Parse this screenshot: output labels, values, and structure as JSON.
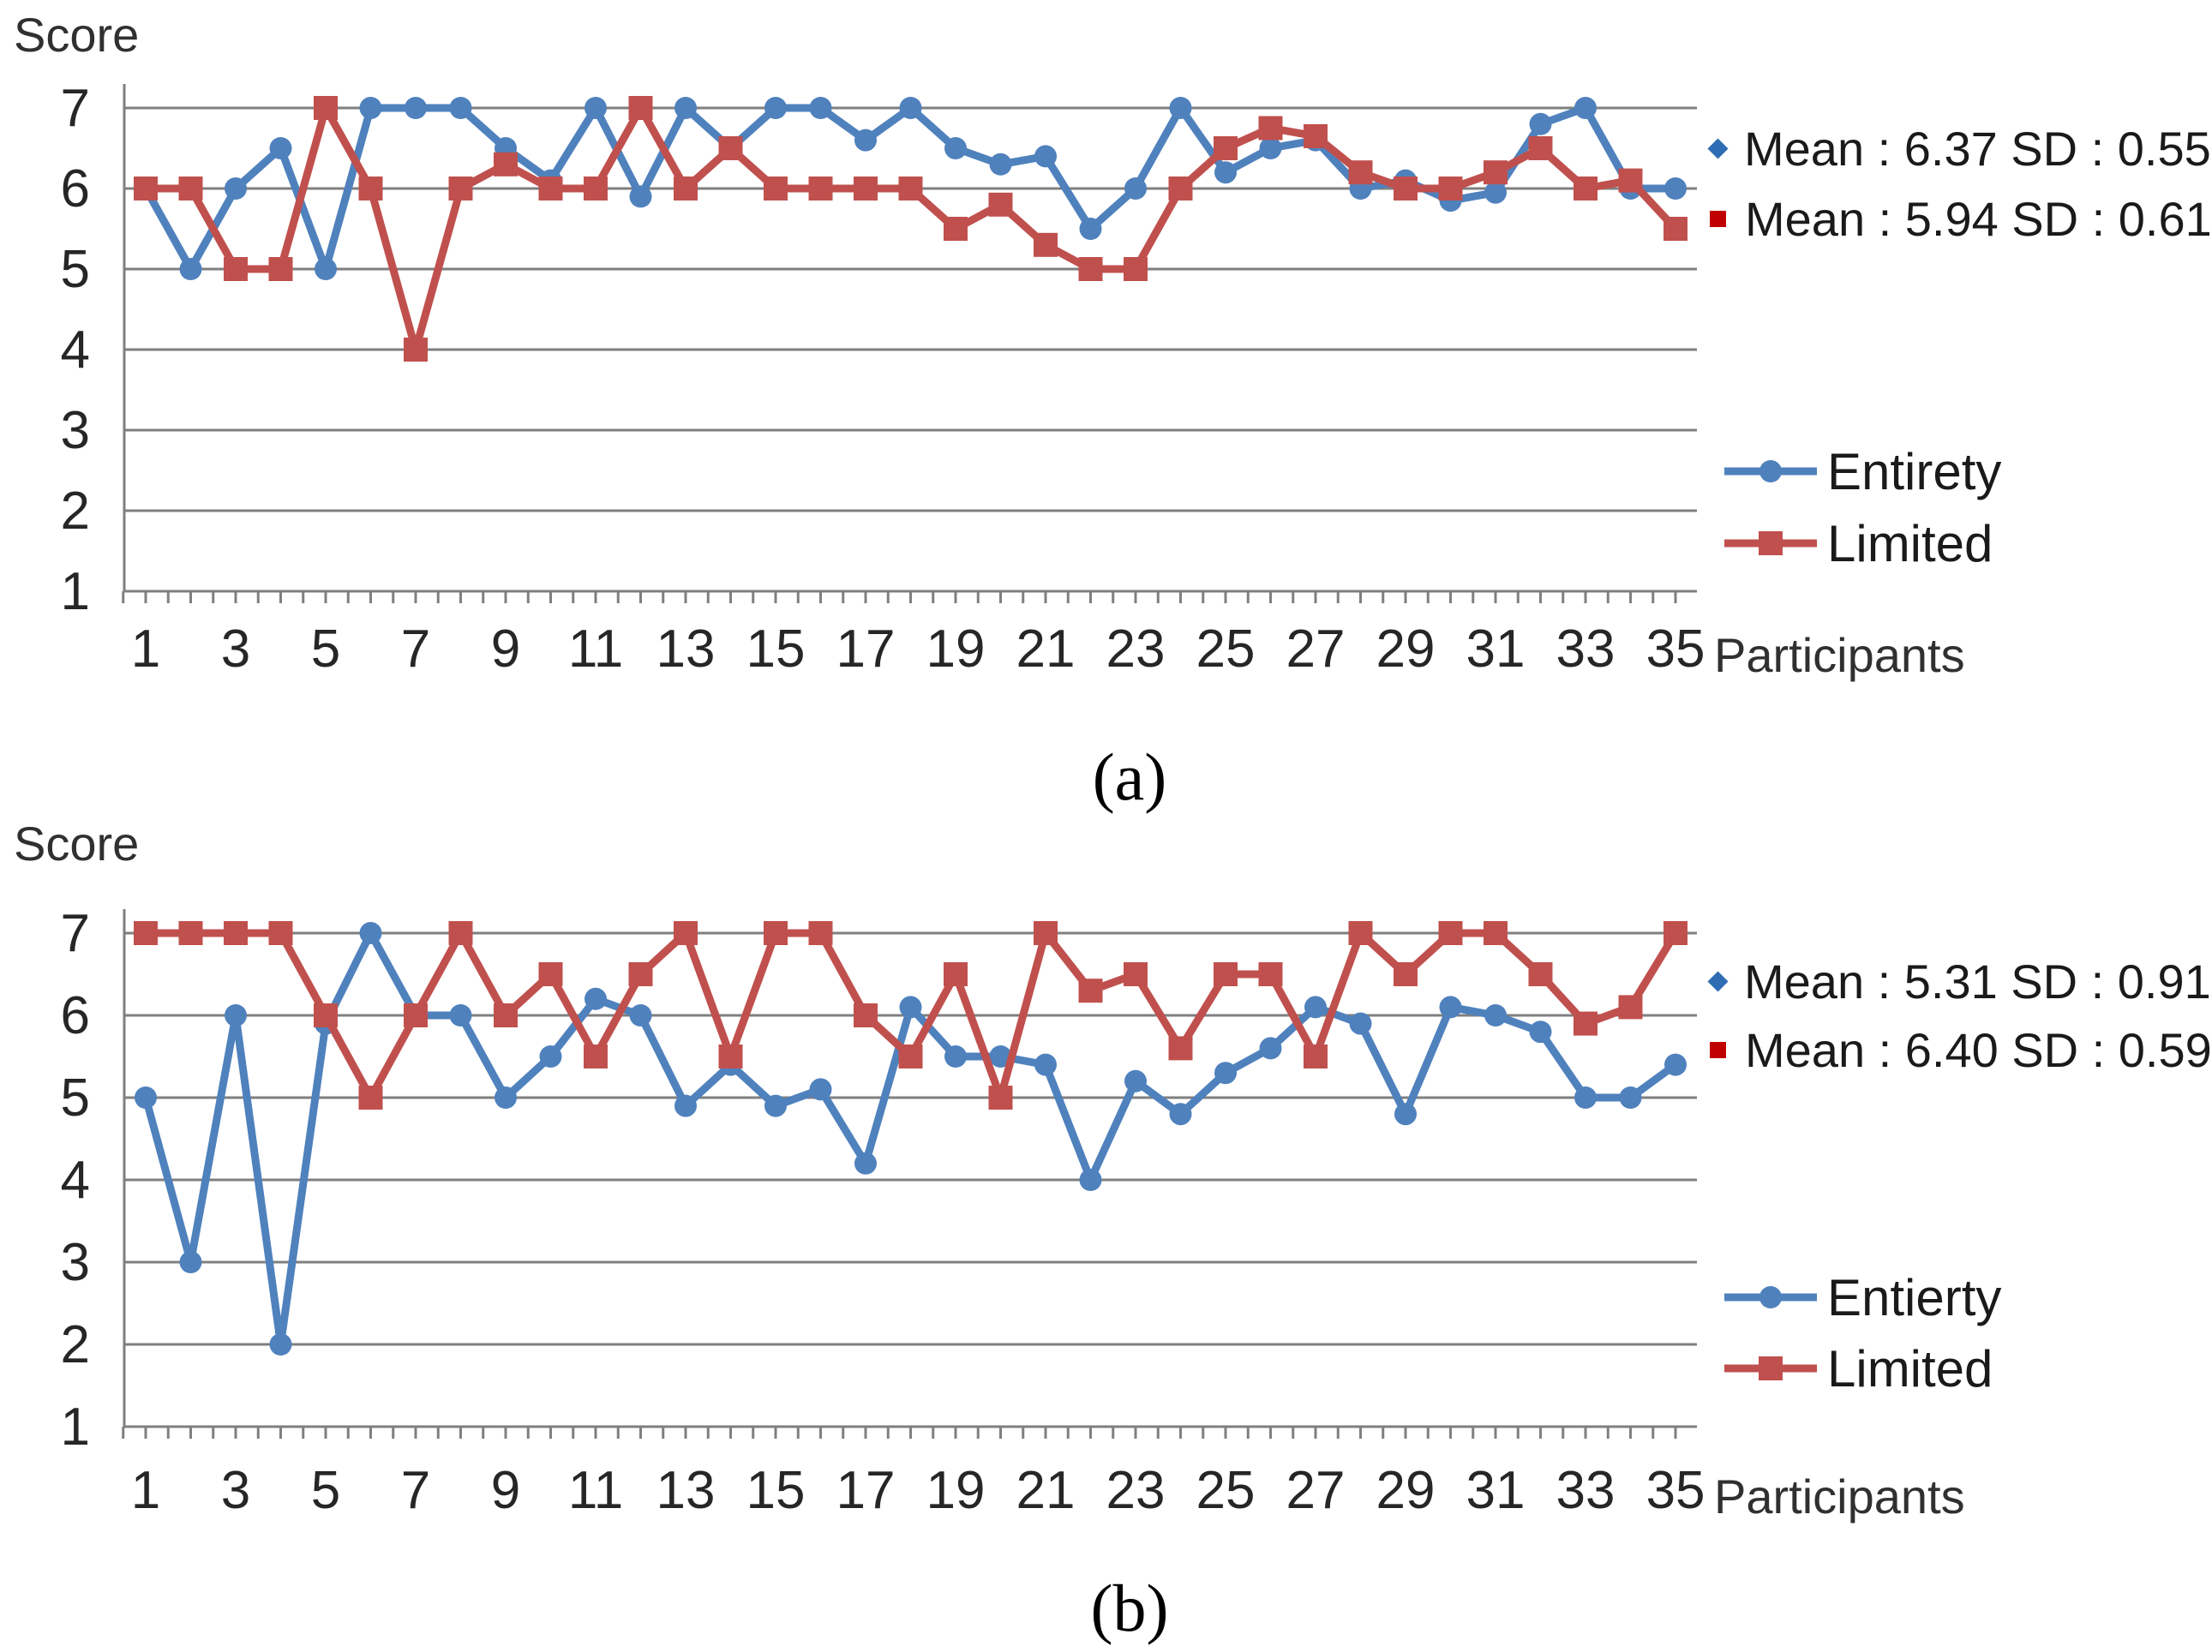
{
  "page": {
    "background": "#ffffff"
  },
  "colors": {
    "series_blue": "#4F81BD",
    "series_red": "#C0504D",
    "grid": "#7F7F7F",
    "text": "#262626"
  },
  "chart_data": [
    {
      "type": "line",
      "caption": "(a)",
      "ylabel": "Score",
      "xlabel": "Participants",
      "ylim": [
        1,
        7
      ],
      "yticks": [
        1,
        2,
        3,
        4,
        5,
        6,
        7
      ],
      "grid": true,
      "legend_position": "right",
      "x": [
        1,
        2,
        3,
        4,
        5,
        6,
        7,
        8,
        9,
        10,
        11,
        12,
        13,
        14,
        15,
        16,
        17,
        18,
        19,
        20,
        21,
        22,
        23,
        24,
        25,
        26,
        27,
        28,
        29,
        30,
        31,
        32,
        33,
        34,
        35
      ],
      "xtick_labels": [
        "1",
        "3",
        "5",
        "7",
        "9",
        "11",
        "13",
        "15",
        "17",
        "19",
        "21",
        "23",
        "25",
        "27",
        "29",
        "31",
        "33",
        "35"
      ],
      "series": [
        {
          "name": "Entirety",
          "color": "#4F81BD",
          "marker": "circle",
          "stats_text": "Mean : 6.37 SD : 0.55",
          "mean": 6.37,
          "sd": 0.55,
          "values": [
            6,
            5,
            6,
            6.5,
            5,
            7,
            7,
            7,
            6.5,
            6.1,
            7,
            5.9,
            7,
            6.5,
            7,
            7,
            6.6,
            7,
            6.5,
            6.3,
            6.4,
            5.5,
            6,
            7,
            6.2,
            6.5,
            6.6,
            6,
            6.1,
            5.85,
            5.95,
            6.8,
            7,
            6,
            6
          ]
        },
        {
          "name": "Limited",
          "color": "#C0504D",
          "marker": "square",
          "stats_text": "Mean : 5.94 SD : 0.61",
          "mean": 5.94,
          "sd": 0.61,
          "values": [
            6,
            6,
            5,
            5,
            7,
            6,
            4,
            6,
            6.3,
            6,
            6,
            7,
            6,
            6.5,
            6,
            6,
            6,
            6,
            5.5,
            5.8,
            5.3,
            5,
            5,
            6,
            6.5,
            6.75,
            6.65,
            6.2,
            6,
            6,
            6.2,
            6.5,
            6,
            6.1,
            5.5
          ]
        }
      ]
    },
    {
      "type": "line",
      "caption": "(b)",
      "ylabel": "Score",
      "xlabel": "Participants",
      "ylim": [
        1,
        7
      ],
      "yticks": [
        1,
        2,
        3,
        4,
        5,
        6,
        7
      ],
      "grid": true,
      "legend_position": "right",
      "x": [
        1,
        2,
        3,
        4,
        5,
        6,
        7,
        8,
        9,
        10,
        11,
        12,
        13,
        14,
        15,
        16,
        17,
        18,
        19,
        20,
        21,
        22,
        23,
        24,
        25,
        26,
        27,
        28,
        29,
        30,
        31,
        32,
        33,
        34,
        35
      ],
      "xtick_labels": [
        "1",
        "3",
        "5",
        "7",
        "9",
        "11",
        "13",
        "15",
        "17",
        "19",
        "21",
        "23",
        "25",
        "27",
        "29",
        "31",
        "33",
        "35"
      ],
      "series": [
        {
          "name": "Entierty",
          "color": "#4F81BD",
          "marker": "circle",
          "stats_text": "Mean : 5.31 SD : 0.91",
          "mean": 5.31,
          "sd": 0.91,
          "values": [
            5,
            3,
            6,
            2,
            5.9,
            7,
            6,
            6,
            5,
            5.5,
            6.2,
            6,
            4.9,
            5.4,
            4.9,
            5.1,
            4.2,
            6.1,
            5.5,
            5.5,
            5.4,
            4,
            5.2,
            4.8,
            5.3,
            5.6,
            6.1,
            5.9,
            4.8,
            6.1,
            6,
            5.8,
            5,
            5,
            5.4
          ]
        },
        {
          "name": "Limited",
          "color": "#C0504D",
          "marker": "square",
          "stats_text": "Mean : 6.40 SD : 0.59",
          "mean": 6.4,
          "sd": 0.59,
          "values": [
            7,
            7,
            7,
            7,
            6,
            5,
            6,
            7,
            6,
            6.5,
            5.5,
            6.5,
            7,
            5.5,
            7,
            7,
            6,
            5.5,
            6.5,
            5,
            7,
            6.3,
            6.5,
            5.6,
            6.5,
            6.5,
            5.5,
            7,
            6.5,
            7,
            7,
            6.5,
            5.9,
            6.1,
            7
          ]
        }
      ]
    }
  ]
}
